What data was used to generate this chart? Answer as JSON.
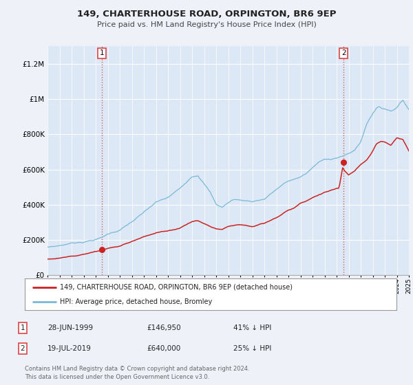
{
  "title": "149, CHARTERHOUSE ROAD, ORPINGTON, BR6 9EP",
  "subtitle": "Price paid vs. HM Land Registry's House Price Index (HPI)",
  "ylim": [
    0,
    1300000
  ],
  "yticks": [
    0,
    200000,
    400000,
    600000,
    800000,
    1000000,
    1200000
  ],
  "ytick_labels": [
    "£0",
    "£200K",
    "£400K",
    "£600K",
    "£800K",
    "£1M",
    "£1.2M"
  ],
  "background_color": "#eef2f8",
  "plot_bg_color": "#dce8f5",
  "grid_color": "#ffffff",
  "hpi_color": "#7ab8d8",
  "price_color": "#cc2222",
  "vline_color": "#dd4444",
  "legend_label1": "149, CHARTERHOUSE ROAD, ORPINGTON, BR6 9EP (detached house)",
  "legend_label2": "HPI: Average price, detached house, Bromley",
  "annotation1_date": "28-JUN-1999",
  "annotation1_price": "£146,950",
  "annotation1_hpi": "41% ↓ HPI",
  "annotation2_date": "19-JUL-2019",
  "annotation2_price": "£640,000",
  "annotation2_hpi": "25% ↓ HPI",
  "footer": "Contains HM Land Registry data © Crown copyright and database right 2024.\nThis data is licensed under the Open Government Licence v3.0.",
  "xstart_year": 1995,
  "xend_year": 2025
}
